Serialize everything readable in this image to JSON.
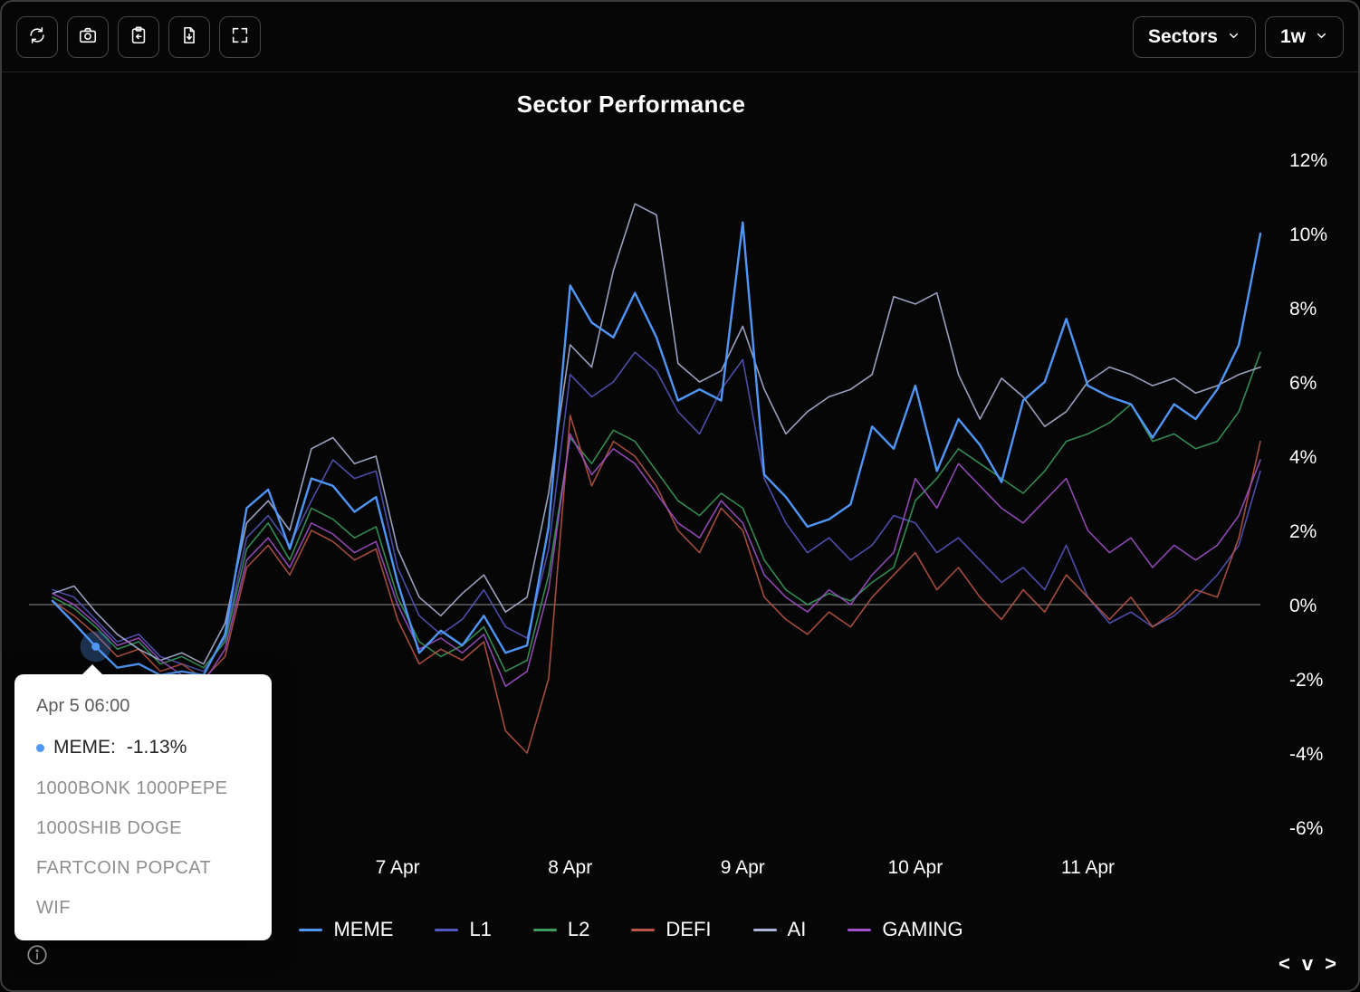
{
  "toolbar": {
    "buttons": [
      {
        "name": "refresh",
        "icon": "refresh-icon"
      },
      {
        "name": "screenshot",
        "icon": "camera-icon"
      },
      {
        "name": "copy",
        "icon": "clipboard-arrow-icon"
      },
      {
        "name": "export",
        "icon": "file-download-icon"
      },
      {
        "name": "fullscreen",
        "icon": "fullscreen-icon"
      }
    ],
    "sectors_label": "Sectors",
    "timeframe_label": "1w"
  },
  "tooltip": {
    "timestamp": "Apr 5 06:00",
    "series_label": "MEME:",
    "value": "-1.13%",
    "components": [
      "1000BONK 1000PEPE",
      "1000SHIB DOGE",
      "FARTCOIN POPCAT",
      "WIF"
    ]
  },
  "nav": {
    "left": "<",
    "down": "v",
    "right": ">"
  },
  "colors": {
    "background": "#060606",
    "accent": "#4f96f6",
    "zero_line": "#8f8f8f",
    "tooltip_bg": "#ffffff"
  },
  "chart_data": {
    "type": "line",
    "title": "Sector Performance",
    "x_axis": {
      "start": "Apr 5 00:00",
      "end": "Apr 12 00:00",
      "interval_hours": 3
    },
    "xlabel": "",
    "ylabel": "",
    "ylim": [
      -7.5,
      13
    ],
    "grid": false,
    "legend_position": "bottom",
    "x_ticks": [
      {
        "t": 48,
        "label": "7 Apr"
      },
      {
        "t": 72,
        "label": "8 Apr"
      },
      {
        "t": 96,
        "label": "9 Apr"
      },
      {
        "t": 120,
        "label": "10 Apr"
      },
      {
        "t": 144,
        "label": "11 Apr"
      }
    ],
    "y_ticks": [
      {
        "value": 12,
        "label": "12%"
      },
      {
        "value": 10,
        "label": "10%"
      },
      {
        "value": 8,
        "label": "8%"
      },
      {
        "value": 6,
        "label": "6%"
      },
      {
        "value": 4,
        "label": "4%"
      },
      {
        "value": 2,
        "label": "2%"
      },
      {
        "value": 0,
        "label": "0%"
      },
      {
        "value": -2,
        "label": "-2%"
      },
      {
        "value": -4,
        "label": "-4%"
      },
      {
        "value": -6,
        "label": "-6%"
      }
    ],
    "highlight": {
      "series": "MEME",
      "t": 6,
      "value": -1.13,
      "timestamp": "Apr 5 06:00"
    },
    "series": [
      {
        "name": "MEME",
        "color": "#4f96f6",
        "values": [
          0.1,
          -0.5,
          -1.13,
          -1.7,
          -1.6,
          -1.9,
          -1.8,
          -1.9,
          -0.8,
          2.6,
          3.1,
          1.5,
          3.4,
          3.2,
          2.5,
          2.9,
          0.6,
          -1.3,
          -0.7,
          -1.1,
          -0.3,
          -1.3,
          -1.1,
          2.1,
          8.6,
          7.6,
          7.2,
          8.4,
          7.2,
          5.5,
          5.8,
          5.5,
          10.3,
          3.5,
          2.9,
          2.1,
          2.3,
          2.7,
          4.8,
          4.2,
          5.9,
          3.6,
          5.0,
          4.3,
          3.3,
          5.5,
          6.0,
          7.7,
          5.9,
          5.6,
          5.4,
          4.5,
          5.4,
          5.0,
          5.8,
          7.0,
          10.0
        ]
      },
      {
        "name": "L1",
        "color": "#5558c0",
        "values": [
          0.4,
          0.2,
          -0.4,
          -1.0,
          -0.8,
          -1.4,
          -1.6,
          -1.8,
          -0.9,
          1.8,
          2.4,
          1.6,
          2.8,
          3.9,
          3.4,
          3.6,
          1.0,
          -0.3,
          -0.8,
          -0.4,
          0.4,
          -0.6,
          -0.9,
          1.5,
          6.2,
          5.6,
          6.0,
          6.8,
          6.3,
          5.2,
          4.6,
          5.8,
          6.6,
          3.4,
          2.2,
          1.4,
          1.8,
          1.2,
          1.6,
          2.4,
          2.2,
          1.4,
          1.8,
          1.2,
          0.6,
          1.0,
          0.4,
          1.6,
          0.2,
          -0.5,
          -0.2,
          -0.6,
          -0.3,
          0.2,
          0.8,
          1.6,
          3.6
        ]
      },
      {
        "name": "L2",
        "color": "#3a9d5d",
        "values": [
          0.2,
          -0.1,
          -0.6,
          -1.2,
          -1.0,
          -1.6,
          -1.4,
          -1.7,
          -1.0,
          1.5,
          2.2,
          1.2,
          2.6,
          2.3,
          1.8,
          2.1,
          0.2,
          -1.0,
          -1.4,
          -1.1,
          -0.6,
          -1.8,
          -1.5,
          0.8,
          4.5,
          3.8,
          4.7,
          4.4,
          3.6,
          2.8,
          2.4,
          3.0,
          2.6,
          1.2,
          0.4,
          0.0,
          0.3,
          0.1,
          0.6,
          1.0,
          2.8,
          3.4,
          4.2,
          3.8,
          3.4,
          3.0,
          3.6,
          4.4,
          4.6,
          4.9,
          5.4,
          4.4,
          4.6,
          4.2,
          4.4,
          5.2,
          6.8
        ]
      },
      {
        "name": "DEFI",
        "color": "#bb5545",
        "values": [
          0.1,
          -0.3,
          -0.8,
          -1.4,
          -1.2,
          -1.8,
          -1.6,
          -2.0,
          -1.4,
          1.0,
          1.6,
          0.8,
          2.0,
          1.7,
          1.2,
          1.5,
          -0.4,
          -1.6,
          -1.2,
          -1.5,
          -1.0,
          -3.4,
          -4.0,
          -2.0,
          5.1,
          3.2,
          4.4,
          4.0,
          3.2,
          2.0,
          1.4,
          2.6,
          2.0,
          0.2,
          -0.4,
          -0.8,
          -0.2,
          -0.6,
          0.2,
          0.8,
          1.4,
          0.4,
          1.0,
          0.2,
          -0.4,
          0.4,
          -0.2,
          0.8,
          0.2,
          -0.4,
          0.2,
          -0.6,
          -0.2,
          0.4,
          0.2,
          1.8,
          4.4
        ]
      },
      {
        "name": "AI",
        "color": "#aeb6d8",
        "values": [
          0.3,
          0.5,
          -0.2,
          -0.8,
          -1.2,
          -1.5,
          -1.3,
          -1.6,
          -0.5,
          2.2,
          2.8,
          2.0,
          4.2,
          4.5,
          3.8,
          4.0,
          1.5,
          0.2,
          -0.3,
          0.3,
          0.8,
          -0.2,
          0.2,
          3.0,
          7.0,
          6.4,
          9.0,
          10.8,
          10.5,
          6.5,
          6.0,
          6.3,
          7.5,
          5.8,
          4.6,
          5.2,
          5.6,
          5.8,
          6.2,
          8.3,
          8.1,
          8.4,
          6.2,
          5.0,
          6.1,
          5.6,
          4.8,
          5.2,
          6.0,
          6.4,
          6.2,
          5.9,
          6.1,
          5.7,
          5.9,
          6.2,
          6.4
        ]
      },
      {
        "name": "GAMING",
        "color": "#a251c9",
        "values": [
          0.3,
          0.0,
          -0.5,
          -1.1,
          -0.9,
          -1.5,
          -1.9,
          -2.1,
          -1.2,
          1.2,
          1.8,
          1.0,
          2.2,
          1.9,
          1.4,
          1.7,
          0.0,
          -1.2,
          -0.9,
          -1.3,
          -0.8,
          -2.2,
          -1.8,
          0.4,
          4.6,
          3.5,
          4.2,
          3.8,
          3.0,
          2.2,
          1.8,
          2.8,
          2.2,
          0.8,
          0.2,
          -0.2,
          0.4,
          0.0,
          0.8,
          1.4,
          3.4,
          2.6,
          3.8,
          3.2,
          2.6,
          2.2,
          2.8,
          3.4,
          2.0,
          1.4,
          1.8,
          1.0,
          1.6,
          1.2,
          1.6,
          2.4,
          3.9
        ]
      }
    ]
  }
}
